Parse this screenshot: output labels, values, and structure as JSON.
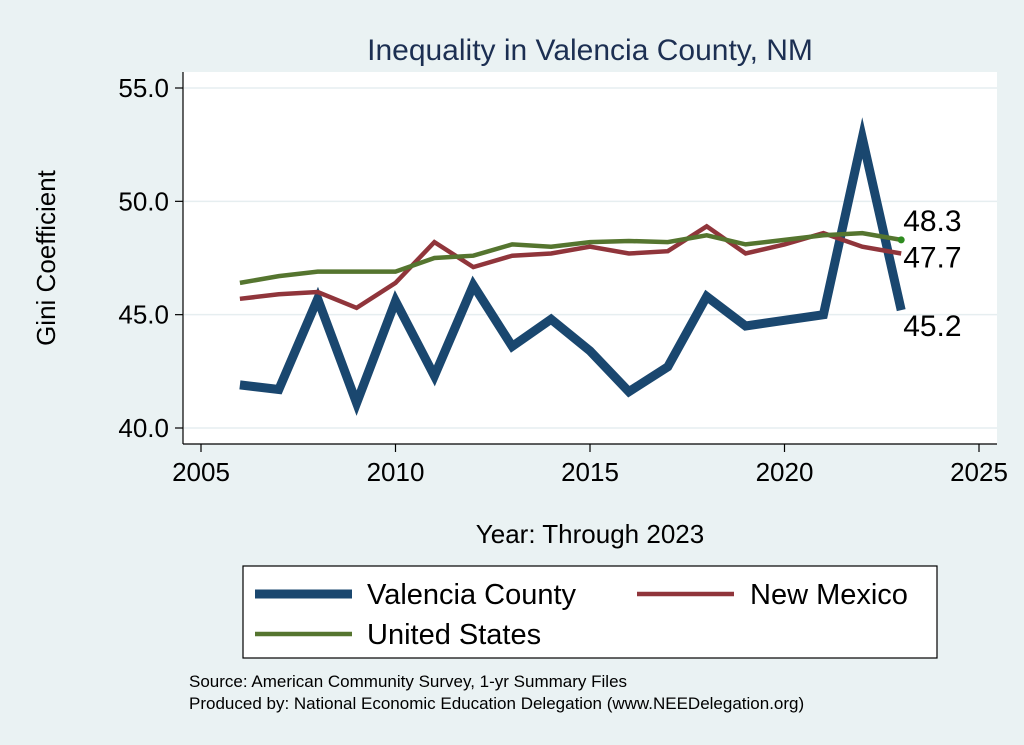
{
  "chart_data": {
    "type": "line",
    "title": "Inequality in Valencia County, NM",
    "xlabel": "Year: Through 2023",
    "ylabel": "Gini Coefficient",
    "xlim": [
      2005,
      2025
    ],
    "ylim": [
      40,
      55
    ],
    "xticks": [
      2005,
      2010,
      2015,
      2020,
      2025
    ],
    "yticks": [
      40,
      45,
      50,
      55
    ],
    "ytick_labels": [
      "40.0",
      "45.0",
      "50.0",
      "55.0"
    ],
    "grid": true,
    "x": [
      2006,
      2007,
      2008,
      2009,
      2010,
      2011,
      2012,
      2013,
      2014,
      2015,
      2016,
      2017,
      2018,
      2019,
      2020,
      2021,
      2022,
      2023
    ],
    "series": [
      {
        "name": "Valencia County",
        "color": "#1a476f",
        "values": [
          41.9,
          41.7,
          45.7,
          41.1,
          45.6,
          42.3,
          46.3,
          43.6,
          44.8,
          43.4,
          41.6,
          42.7,
          45.8,
          44.5,
          44.75,
          45.0,
          52.8,
          45.2
        ],
        "end_label": "45.2"
      },
      {
        "name": "New Mexico",
        "color": "#90353b",
        "values": [
          45.7,
          45.9,
          46.0,
          45.3,
          46.4,
          48.2,
          47.1,
          47.6,
          47.7,
          48.0,
          47.7,
          47.8,
          48.9,
          47.7,
          48.1,
          48.6,
          48.0,
          47.7
        ],
        "end_label": "47.7"
      },
      {
        "name": "United States",
        "color": "#55752f",
        "values": [
          46.4,
          46.7,
          46.9,
          46.9,
          46.9,
          47.5,
          47.6,
          48.1,
          48.0,
          48.2,
          48.25,
          48.2,
          48.5,
          48.1,
          48.3,
          48.5,
          48.6,
          48.3
        ],
        "end_label": "48.3"
      }
    ],
    "legend": {
      "placement": "bottom",
      "entries": [
        "Valencia County",
        "New Mexico",
        "United States"
      ]
    }
  },
  "notes": {
    "source": "Source: American Community Survey, 1-yr Summary Files",
    "produced": "Produced by: National Economic Education Delegation (www.NEEDelegation.org)"
  }
}
